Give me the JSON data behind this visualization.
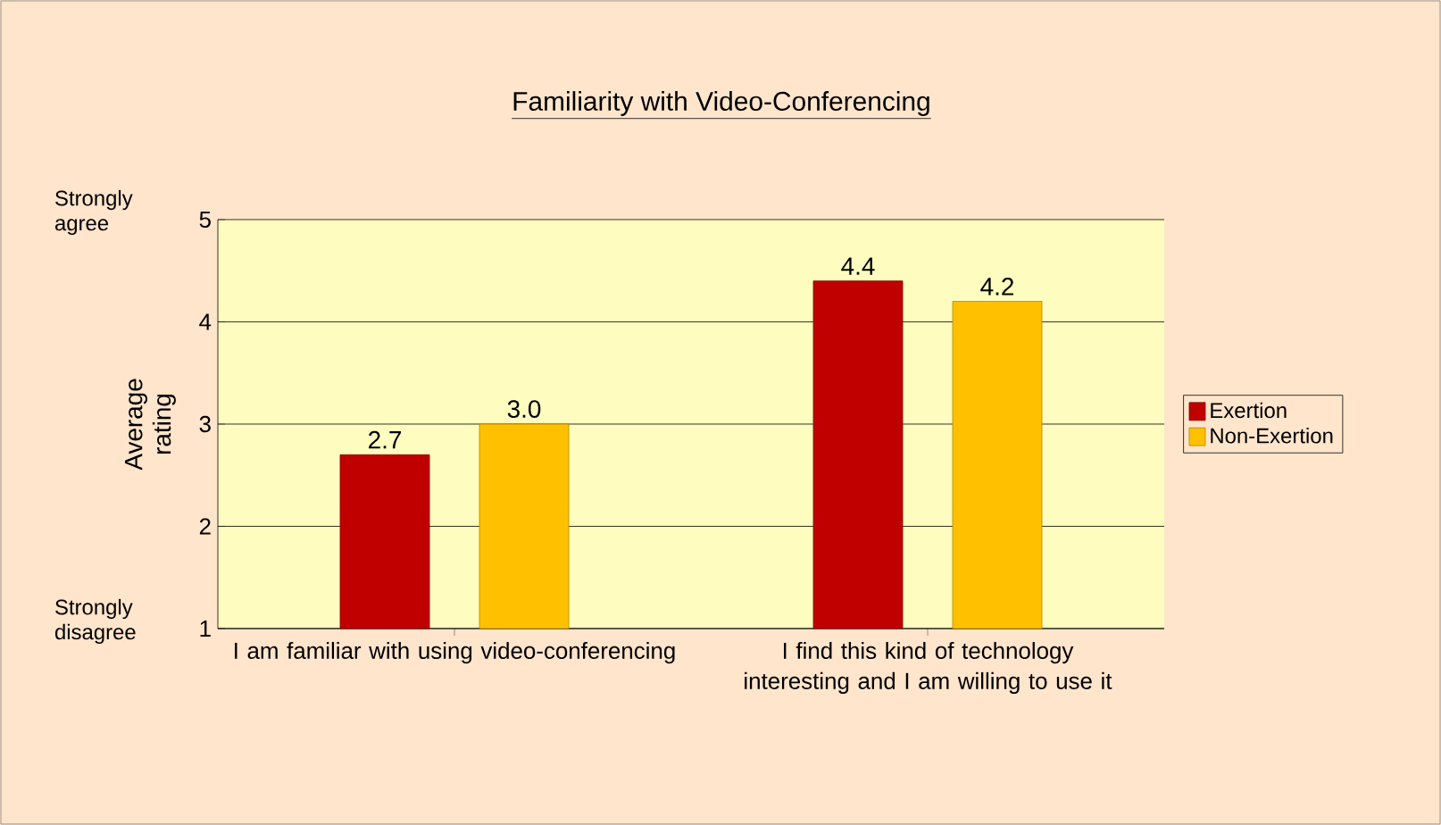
{
  "chart_data": {
    "type": "bar",
    "title": "Familiarity with Video-Conferencing",
    "ylabel": "Average rating",
    "categories": [
      "I am familiar with using video-conferencing",
      "I find this kind of technology interesting and I am willing to use it"
    ],
    "series": [
      {
        "name": "Exertion",
        "color": "#c00000",
        "values": [
          2.7,
          4.4
        ],
        "value_labels": [
          "2.7",
          "4.4"
        ]
      },
      {
        "name": "Non-Exertion",
        "color": "#ffc000",
        "values": [
          3.0,
          4.2
        ],
        "value_labels": [
          "3.0",
          "4.2"
        ]
      }
    ],
    "ylim": [
      1,
      5
    ],
    "yticks": [
      1,
      2,
      3,
      4,
      5
    ],
    "grid": "y",
    "legend": "right",
    "annotations": [
      "Strongly agree",
      "Strongly disagree"
    ]
  }
}
